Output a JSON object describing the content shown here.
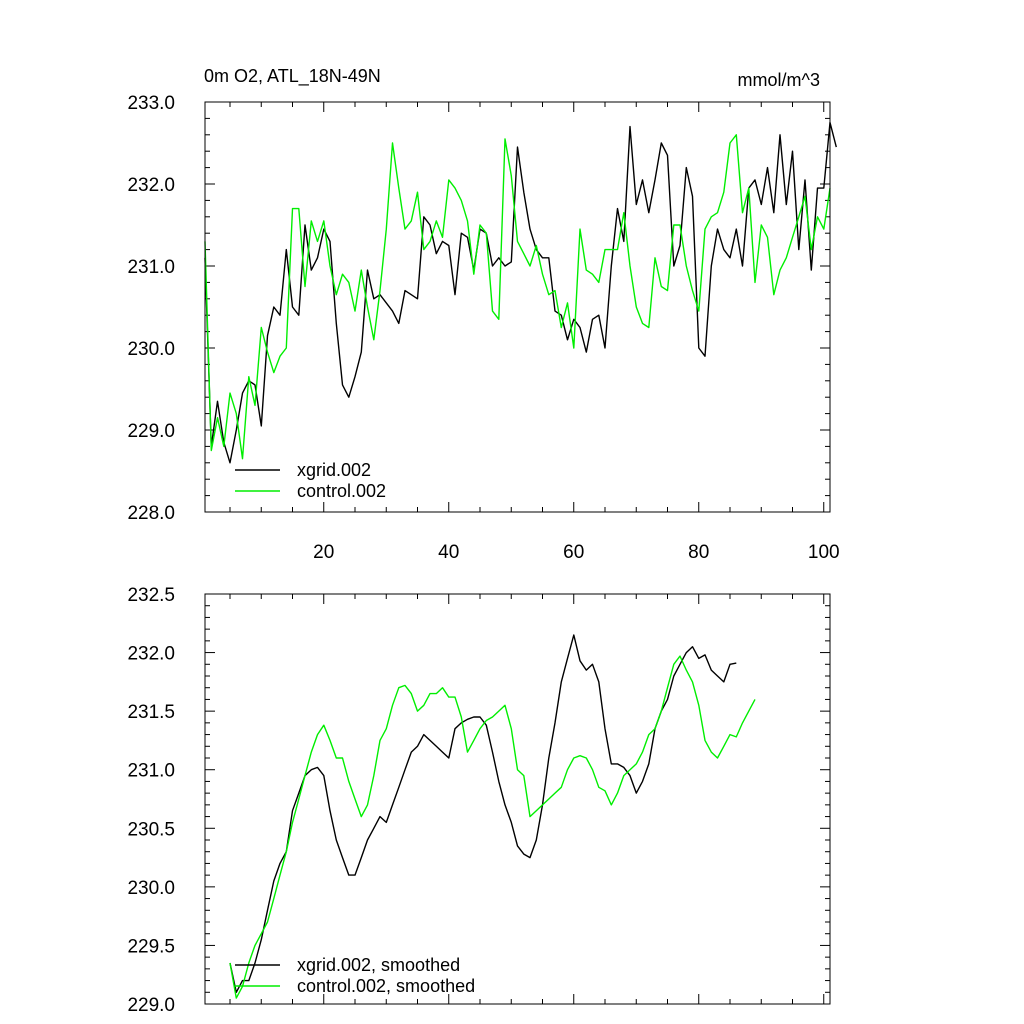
{
  "chart_data": [
    {
      "type": "line",
      "title_left": "0m O2, ATL_18N-49N",
      "title_right": "mmol/m^3",
      "xlabel": "",
      "ylabel": "",
      "xlim": [
        1,
        101
      ],
      "ylim": [
        228,
        233
      ],
      "x_ticks": [
        20,
        40,
        60,
        80,
        100
      ],
      "y_ticks": [
        "228.0",
        "229.0",
        "230.0",
        "231.0",
        "232.0",
        "233.0"
      ],
      "legend_position": "bottom-left",
      "series": [
        {
          "name": "xgrid.002",
          "color": "#000000",
          "values": [
            231.1,
            228.8,
            229.35,
            228.85,
            228.6,
            229.0,
            229.45,
            229.6,
            229.55,
            229.05,
            230.15,
            230.5,
            230.4,
            231.2,
            230.5,
            230.4,
            231.5,
            230.95,
            231.1,
            231.45,
            231.3,
            230.3,
            229.55,
            229.4,
            229.65,
            229.95,
            230.95,
            230.6,
            230.65,
            230.55,
            230.45,
            230.3,
            230.7,
            230.65,
            230.6,
            231.6,
            231.5,
            231.15,
            231.3,
            231.25,
            230.65,
            231.4,
            231.35,
            230.95,
            231.45,
            231.4,
            231.0,
            231.1,
            231.0,
            231.05,
            232.45,
            231.9,
            231.45,
            231.2,
            231.1,
            231.1,
            230.45,
            230.4,
            230.1,
            230.35,
            230.25,
            229.95,
            230.35,
            230.4,
            230.0,
            231.0,
            231.7,
            231.3,
            232.7,
            231.75,
            232.05,
            231.65,
            232.05,
            232.5,
            232.35,
            231.0,
            231.25,
            232.2,
            231.85,
            230.0,
            229.9,
            231.0,
            231.45,
            231.2,
            231.1,
            231.45,
            231.0,
            231.95,
            232.05,
            231.75,
            232.2,
            231.65,
            232.6,
            231.75,
            232.4,
            231.2,
            232.05,
            230.95,
            231.95,
            231.95,
            232.75,
            232.45
          ]
        },
        {
          "name": "control.002",
          "color": "#00ee00",
          "values": [
            231.3,
            228.75,
            229.15,
            228.8,
            229.45,
            229.2,
            228.65,
            229.65,
            229.3,
            230.25,
            229.95,
            229.7,
            229.9,
            230.0,
            231.7,
            231.7,
            230.75,
            231.55,
            231.3,
            231.55,
            231.0,
            230.65,
            230.9,
            230.8,
            230.45,
            230.95,
            230.5,
            230.1,
            230.7,
            231.45,
            232.5,
            231.95,
            231.45,
            231.55,
            231.9,
            231.2,
            231.3,
            231.55,
            231.35,
            232.05,
            231.95,
            231.8,
            231.55,
            230.9,
            231.5,
            231.4,
            230.45,
            230.35,
            232.55,
            232.1,
            231.3,
            231.15,
            231.0,
            231.25,
            230.9,
            230.65,
            230.7,
            230.25,
            230.55,
            230.0,
            231.45,
            230.95,
            230.9,
            230.8,
            231.2,
            231.2,
            231.2,
            231.65,
            231.0,
            230.5,
            230.3,
            230.25,
            231.1,
            230.75,
            230.7,
            231.5,
            231.5,
            231.0,
            230.7,
            230.45,
            231.45,
            231.6,
            231.65,
            231.9,
            232.5,
            232.6,
            231.65,
            231.95,
            230.8,
            231.5,
            231.35,
            230.65,
            230.95,
            231.1,
            231.35,
            231.6,
            231.85,
            231.2,
            231.6,
            231.45,
            231.95
          ]
        }
      ]
    },
    {
      "type": "line",
      "xlabel": "",
      "ylabel": "",
      "xlim": [
        1,
        101
      ],
      "ylim": [
        229,
        232.5
      ],
      "x_ticks": [
        20,
        40,
        60,
        80,
        100
      ],
      "y_ticks": [
        "229.0",
        "229.5",
        "230.0",
        "230.5",
        "231.0",
        "231.5",
        "232.0",
        "232.5"
      ],
      "legend_position": "bottom-left",
      "series": [
        {
          "name": "xgrid.002, smoothed",
          "color": "#000000",
          "x_start": 5,
          "values": [
            229.35,
            229.1,
            229.2,
            229.2,
            229.35,
            229.55,
            229.8,
            230.05,
            230.2,
            230.3,
            230.65,
            230.8,
            230.95,
            231.0,
            231.02,
            230.95,
            230.65,
            230.4,
            230.25,
            230.1,
            230.1,
            230.25,
            230.4,
            230.5,
            230.6,
            230.55,
            230.7,
            230.85,
            231.0,
            231.15,
            231.2,
            231.3,
            231.25,
            231.2,
            231.15,
            231.1,
            231.35,
            231.4,
            231.43,
            231.45,
            231.45,
            231.38,
            231.15,
            230.9,
            230.7,
            230.55,
            230.35,
            230.28,
            230.25,
            230.4,
            230.7,
            231.1,
            231.4,
            231.75,
            231.95,
            232.15,
            231.93,
            231.85,
            231.9,
            231.75,
            231.35,
            231.05,
            231.05,
            231.02,
            230.95,
            230.8,
            230.9,
            231.05,
            231.35,
            231.5,
            231.6,
            231.8,
            231.9,
            232.0,
            232.05,
            231.95,
            231.98,
            231.85,
            231.8,
            231.75,
            231.9,
            231.91
          ]
        },
        {
          "name": "control.002, smoothed",
          "color": "#00ee00",
          "x_start": 5,
          "values": [
            229.35,
            229.05,
            229.15,
            229.35,
            229.5,
            229.6,
            229.7,
            229.9,
            230.1,
            230.3,
            230.55,
            230.75,
            230.95,
            231.15,
            231.3,
            231.38,
            231.25,
            231.1,
            231.1,
            230.9,
            230.75,
            230.6,
            230.7,
            230.95,
            231.25,
            231.35,
            231.55,
            231.7,
            231.72,
            231.65,
            231.5,
            231.55,
            231.65,
            231.65,
            231.7,
            231.62,
            231.62,
            231.45,
            231.15,
            231.25,
            231.35,
            231.42,
            231.45,
            231.5,
            231.55,
            231.35,
            231.0,
            230.95,
            230.6,
            230.65,
            230.7,
            230.75,
            230.8,
            230.85,
            231.0,
            231.1,
            231.12,
            231.1,
            231.0,
            230.85,
            230.82,
            230.7,
            230.8,
            230.95,
            231.0,
            231.05,
            231.15,
            231.3,
            231.35,
            231.5,
            231.7,
            231.9,
            231.97,
            231.85,
            231.75,
            231.55,
            231.25,
            231.15,
            231.1,
            231.2,
            231.3,
            231.28,
            231.4,
            231.5,
            231.6
          ]
        }
      ]
    }
  ]
}
